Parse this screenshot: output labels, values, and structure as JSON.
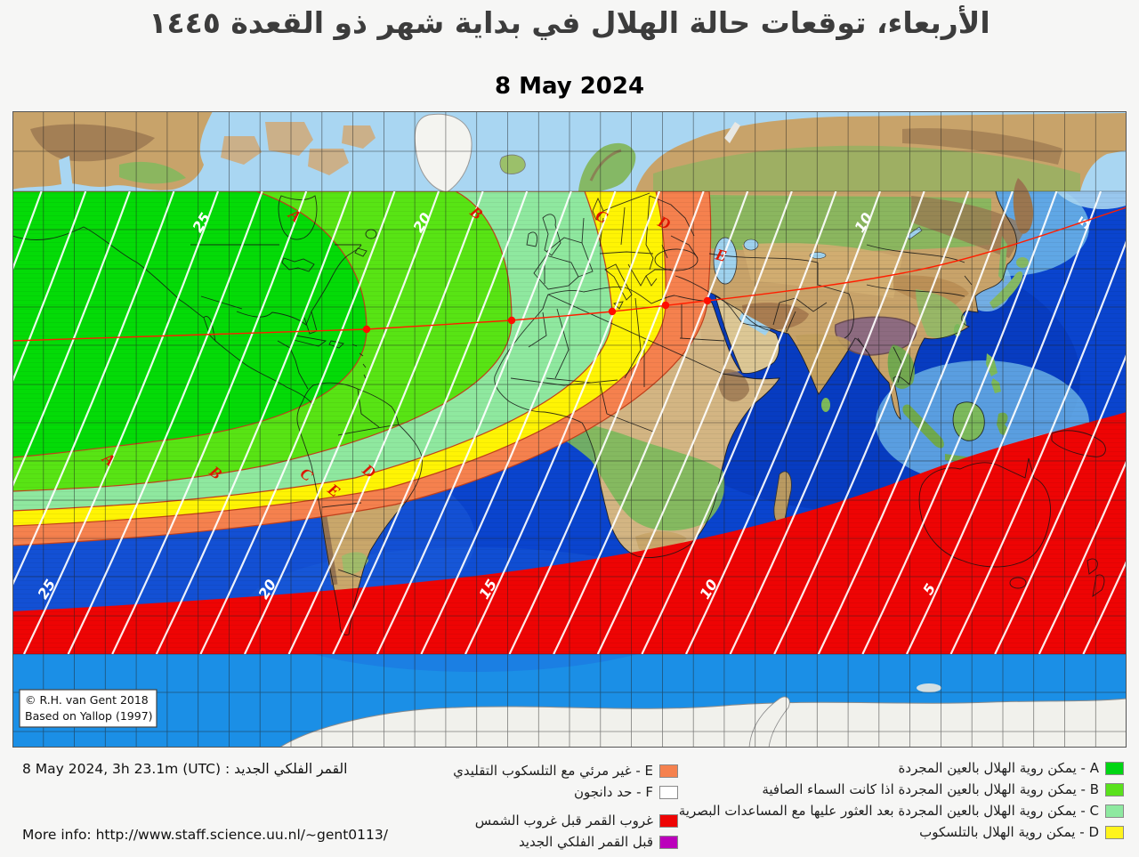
{
  "title_ar": "الأربعاء، توقعات حالة الهلال في بداية شهر ذو القعدة ١٤٤٥",
  "date_line": "8 May 2024",
  "footer": {
    "new_moon_line": "8 May 2024, 3h 23.1m (UTC) : القمر الفلكي الجديد",
    "more_info": "More info: http://www.staff.science.uu.nl/~gent0113/"
  },
  "copyright": {
    "line1": "© R.H. van Gent 2018",
    "line2": "Based on Yallop (1997)"
  },
  "legend": {
    "right_column": [
      {
        "label": "A - يمكن روية الهلال بالعين المجردة",
        "color": "#00d513"
      },
      {
        "label": "B - يمكن روية الهلال بالعين المجردة اذا كانت السماء الصافية",
        "color": "#59e11c"
      },
      {
        "label": "C - يمكن روية الهلال بالعين المجردة بعد العثور عليها مع المساعدات البصرية",
        "color": "#8ee9a0"
      },
      {
        "label": "D - يمكن روية الهلال بالتلسكوب",
        "color": "#fff41c"
      }
    ],
    "middle_column": [
      {
        "label": "E - غير مرئي مع التلسكوب التقليدي",
        "color": "#f5814e"
      },
      {
        "label": "F - حد دانجون",
        "color": "#ffffff"
      },
      {
        "label": "غروب القمر قبل غروب الشمس",
        "color": "#ee0404"
      },
      {
        "label": "قبل القمر الفلكي الجديد",
        "color": "#bb00bb"
      }
    ]
  },
  "map": {
    "curve_letters": [
      "A",
      "B",
      "C",
      "D",
      "E"
    ],
    "contour_labels_top": [
      "25",
      "20",
      "10",
      "5"
    ],
    "contour_labels_bottom": [
      "25",
      "20",
      "15",
      "10",
      "5"
    ],
    "zone_colors": {
      "A": "#04db07",
      "B": "#58e414",
      "C": "#8fe89f",
      "D": "#fff404",
      "E": "#f5814e",
      "moonset_before_sunset": "#ee0404",
      "before_new_moon": "#bb00bb"
    }
  }
}
